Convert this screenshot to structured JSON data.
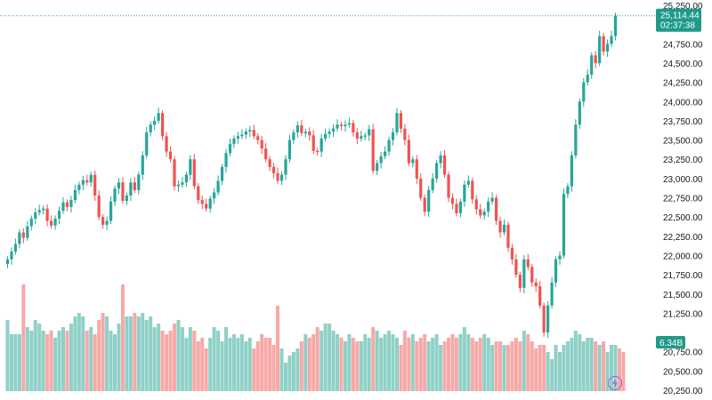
{
  "chart_data": {
    "type": "candlestick",
    "price_axis": {
      "ticks": [
        "25,250.00",
        "24,750.00",
        "24,500.00",
        "24,250.00",
        "24,000.00",
        "23,750.00",
        "23,500.00",
        "23,250.00",
        "23,000.00",
        "22,750.00",
        "22,500.00",
        "22,250.00",
        "22,000.00",
        "21,750.00",
        "21,500.00",
        "21,250.00",
        "20,750.00",
        "20,500.00",
        "20,250.00"
      ],
      "tick_values": [
        25250,
        24750,
        24500,
        24250,
        24000,
        23750,
        23500,
        23250,
        23000,
        22750,
        22500,
        22250,
        22000,
        21750,
        21500,
        21250,
        20750,
        20500,
        20250
      ],
      "range": [
        20250,
        25250
      ]
    },
    "last_price": {
      "value": "25,114.44",
      "countdown": "02:37:38",
      "numeric": 25114.44
    },
    "volume": {
      "last_label": "6.34B"
    },
    "colors": {
      "up": "#26a69a",
      "down": "#ef5350",
      "volume_up": "#8fd0c7",
      "volume_down": "#f7a9a7",
      "badge": "#1f9a8a",
      "price_line": "#26a69a"
    },
    "candles_close": [
      21950,
      22050,
      22150,
      22300,
      22230,
      22380,
      22480,
      22560,
      22590,
      22610,
      22450,
      22390,
      22480,
      22580,
      22690,
      22630,
      22720,
      22850,
      22920,
      22980,
      22950,
      23050,
      22780,
      22500,
      22400,
      22450,
      22700,
      22870,
      22950,
      22710,
      22780,
      22950,
      22850,
      23050,
      23300,
      23600,
      23700,
      23750,
      23850,
      23550,
      23350,
      23250,
      22900,
      22920,
      22950,
      23050,
      23250,
      22900,
      22720,
      22670,
      22610,
      22740,
      22820,
      22970,
      23150,
      23330,
      23450,
      23520,
      23550,
      23570,
      23610,
      23630,
      23550,
      23500,
      23390,
      23250,
      23150,
      23070,
      22970,
      23050,
      23250,
      23500,
      23600,
      23690,
      23590,
      23610,
      23560,
      23360,
      23350,
      23520,
      23580,
      23610,
      23650,
      23700,
      23680,
      23700,
      23720,
      23600,
      23520,
      23550,
      23560,
      23640,
      23100,
      23200,
      23290,
      23350,
      23500,
      23600,
      23850,
      23650,
      23500,
      23200,
      23250,
      23000,
      22750,
      22570,
      22850,
      23000,
      23200,
      23300,
      23050,
      22750,
      22670,
      22550,
      22700,
      22920,
      22970,
      22730,
      22600,
      22520,
      22570,
      22700,
      22750,
      22450,
      22300,
      22400,
      22100,
      21950,
      21750,
      21580,
      21950,
      21850,
      21650,
      21600,
      21350,
      21000,
      21350,
      21650,
      21950,
      22000,
      22800,
      22900,
      23300,
      23700,
      24000,
      24250,
      24350,
      24600,
      24500,
      24850,
      24650,
      24750,
      24850,
      25114
    ],
    "candles_dir": [
      "up",
      "up",
      "up",
      "up",
      "down",
      "up",
      "up",
      "up",
      "up",
      "up",
      "down",
      "down",
      "up",
      "up",
      "up",
      "down",
      "up",
      "up",
      "up",
      "up",
      "down",
      "up",
      "down",
      "down",
      "down",
      "up",
      "up",
      "up",
      "up",
      "down",
      "up",
      "up",
      "down",
      "up",
      "up",
      "up",
      "up",
      "up",
      "up",
      "down",
      "down",
      "down",
      "down",
      "up",
      "up",
      "up",
      "up",
      "down",
      "down",
      "down",
      "down",
      "up",
      "up",
      "up",
      "up",
      "up",
      "up",
      "up",
      "up",
      "up",
      "up",
      "up",
      "down",
      "down",
      "down",
      "down",
      "down",
      "down",
      "down",
      "up",
      "up",
      "up",
      "up",
      "up",
      "down",
      "up",
      "down",
      "down",
      "down",
      "up",
      "up",
      "up",
      "up",
      "up",
      "down",
      "up",
      "up",
      "down",
      "down",
      "up",
      "up",
      "up",
      "down",
      "up",
      "up",
      "up",
      "up",
      "up",
      "up",
      "down",
      "down",
      "down",
      "up",
      "down",
      "down",
      "down",
      "up",
      "up",
      "up",
      "up",
      "down",
      "down",
      "down",
      "down",
      "up",
      "up",
      "up",
      "down",
      "down",
      "down",
      "up",
      "up",
      "up",
      "down",
      "down",
      "up",
      "down",
      "down",
      "down",
      "down",
      "up",
      "down",
      "down",
      "down",
      "down",
      "down",
      "up",
      "up",
      "up",
      "up",
      "up",
      "up",
      "up",
      "up",
      "up",
      "up",
      "up",
      "up",
      "down",
      "up",
      "down",
      "up",
      "up",
      "up"
    ],
    "volumes": [
      1.0,
      0.8,
      0.8,
      0.8,
      1.5,
      0.9,
      0.85,
      1.0,
      0.95,
      0.85,
      0.8,
      0.85,
      0.75,
      0.85,
      0.9,
      0.85,
      0.95,
      1.05,
      1.1,
      1.05,
      0.85,
      0.9,
      0.8,
      1.0,
      1.1,
      1.05,
      0.85,
      0.8,
      0.95,
      1.5,
      1.05,
      1.05,
      1.1,
      1.05,
      1.1,
      1.0,
      1.05,
      0.9,
      0.95,
      0.85,
      0.8,
      0.85,
      0.95,
      1.0,
      0.9,
      0.75,
      0.9,
      0.85,
      0.7,
      0.75,
      0.6,
      0.75,
      0.9,
      0.85,
      0.7,
      0.9,
      0.75,
      0.8,
      0.75,
      0.8,
      0.7,
      0.75,
      0.6,
      0.7,
      0.8,
      0.75,
      0.75,
      0.65,
      1.2,
      0.6,
      0.4,
      0.5,
      0.55,
      0.6,
      0.7,
      0.8,
      0.75,
      0.8,
      0.9,
      0.85,
      0.95,
      0.95,
      0.85,
      0.8,
      0.75,
      0.7,
      0.8,
      0.75,
      0.7,
      0.7,
      0.8,
      0.75,
      0.9,
      0.85,
      0.75,
      0.8,
      0.85,
      0.8,
      0.75,
      0.65,
      0.85,
      0.75,
      0.8,
      0.7,
      0.75,
      0.8,
      0.7,
      0.75,
      0.8,
      0.65,
      0.7,
      0.75,
      0.8,
      0.75,
      0.8,
      0.9,
      0.8,
      0.75,
      0.7,
      0.75,
      0.8,
      0.75,
      0.65,
      0.7,
      0.7,
      0.65,
      0.65,
      0.7,
      0.75,
      0.7,
      0.85,
      0.8,
      0.7,
      0.6,
      0.65,
      0.65,
      0.55,
      0.45,
      0.65,
      0.55,
      0.65,
      0.7,
      0.75,
      0.85,
      0.8,
      0.7,
      0.75,
      0.75,
      0.7,
      0.65,
      0.7,
      0.55,
      0.65,
      0.65,
      0.6,
      0.55
    ]
  }
}
